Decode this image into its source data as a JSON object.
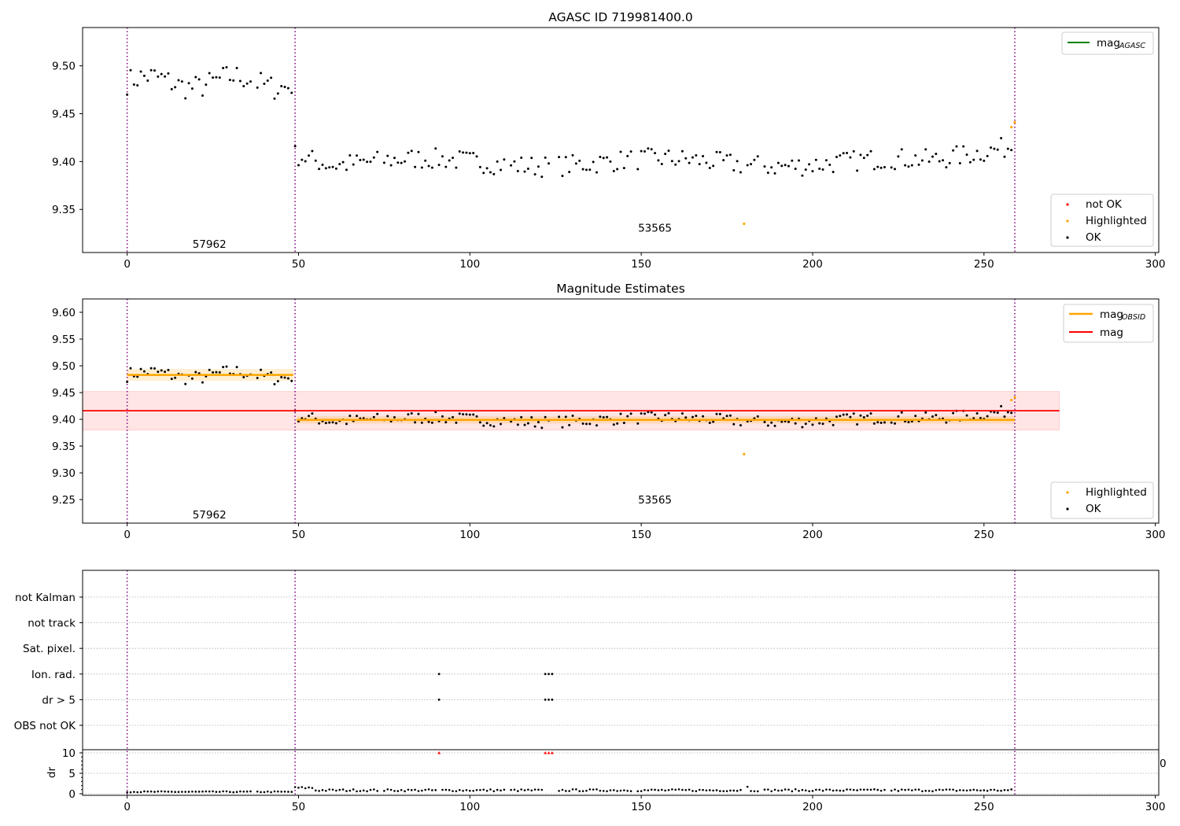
{
  "figure": {
    "top_title": "AGASC ID 719981400.0",
    "middle_title": "Magnitude Estimates"
  },
  "legends": {
    "top_line": {
      "label": "mag",
      "sub": "AGASC",
      "color": "#008000"
    },
    "top_points": [
      {
        "label": "not OK",
        "color": "#ff0000"
      },
      {
        "label": "Highlighted",
        "color": "#ffa500"
      },
      {
        "label": "OK",
        "color": "#000000"
      }
    ],
    "middle_lines": [
      {
        "label": "mag",
        "sub": "OBSID",
        "color": "#ffa500"
      },
      {
        "label": "mag",
        "sub": "",
        "color": "#ff0000"
      }
    ],
    "middle_points": [
      {
        "label": "Highlighted",
        "color": "#ffa500"
      },
      {
        "label": "OK",
        "color": "#000000"
      }
    ]
  },
  "chart_data": [
    {
      "type": "scatter",
      "title": "AGASC ID 719981400.0",
      "xlim": [
        -13,
        301
      ],
      "ylim": [
        9.305,
        9.54
      ],
      "xticks": [
        0,
        50,
        100,
        150,
        200,
        250,
        300
      ],
      "yticks": [
        9.35,
        9.4,
        9.45,
        9.5
      ],
      "obsid_boundaries": [
        0,
        49,
        259
      ],
      "obsid_labels": [
        {
          "text": "57962",
          "x": 24,
          "y": 9.314
        },
        {
          "text": "53565",
          "x": 154,
          "y": 9.331
        }
      ],
      "segment_means": [
        {
          "x0": 0,
          "x1": 49,
          "mean": 9.483
        },
        {
          "x0": 49,
          "x1": 259,
          "mean": 9.399
        }
      ],
      "highlighted_points": [
        {
          "x": 180,
          "y": 9.335
        },
        {
          "x": 258,
          "y": 9.436
        },
        {
          "x": 259,
          "y": 9.441
        }
      ],
      "not_ok_points": []
    },
    {
      "type": "scatter",
      "title": "Magnitude Estimates",
      "xlim": [
        -13,
        301
      ],
      "ylim": [
        9.206,
        9.625
      ],
      "xticks": [
        0,
        50,
        100,
        150,
        200,
        250,
        300
      ],
      "yticks": [
        9.25,
        9.3,
        9.35,
        9.4,
        9.45,
        9.5,
        9.55,
        9.6
      ],
      "mag": 9.416,
      "mag_band": [
        9.38,
        9.452
      ],
      "mag_band_x": [
        -13,
        272
      ],
      "mag_obsid": [
        {
          "x0": 0,
          "x1": 48.5,
          "value": 9.483,
          "band": [
            9.472,
            9.494
          ]
        },
        {
          "x0": 49.5,
          "x1": 259,
          "value": 9.399,
          "band": [
            9.392,
            9.406
          ]
        }
      ],
      "obsid_labels": [
        {
          "text": "57962",
          "x": 24,
          "y": 9.222
        },
        {
          "text": "53565",
          "x": 154,
          "y": 9.25
        }
      ]
    },
    {
      "type": "scatter",
      "title": "",
      "categories": [
        "not Kalman",
        "not track",
        "Sat. pixel.",
        "Ion. rad.",
        "dr > 5",
        "OBS not OK"
      ],
      "flags": {
        "Ion. rad.": [
          91,
          122,
          123,
          124
        ],
        "dr > 5": [
          91,
          122,
          123,
          124
        ]
      },
      "xlim": [
        -13,
        301
      ],
      "xticks": [
        0,
        50,
        100,
        150,
        200,
        250,
        300
      ],
      "dr_ylabel": "dr",
      "dr_ylim": [
        -0.5,
        10.5
      ],
      "dr_yticks": [
        0,
        5,
        10
      ],
      "dr_clipped": [
        91,
        122,
        123,
        124
      ],
      "dr_clip_value": 10,
      "stray_tick_label": "0"
    }
  ]
}
